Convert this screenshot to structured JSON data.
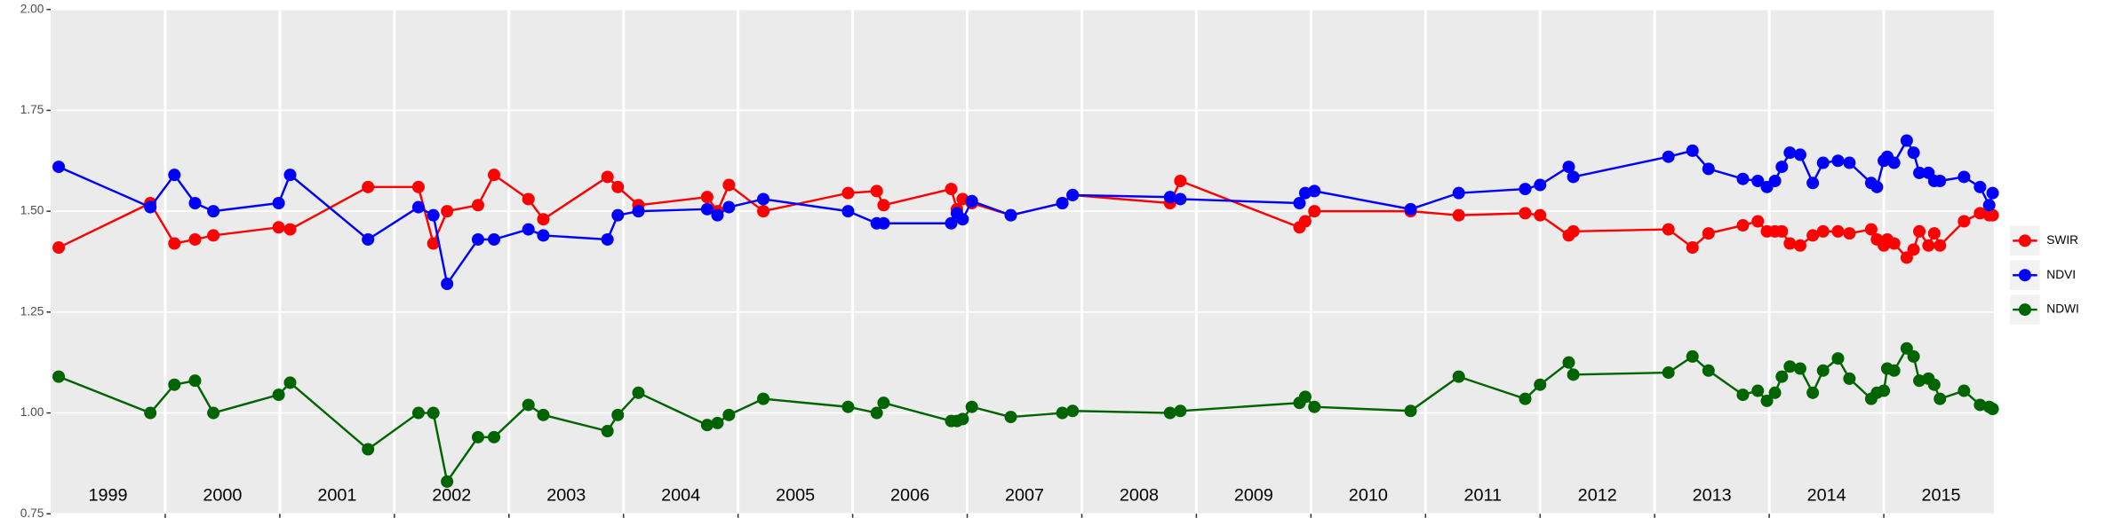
{
  "chart_data": {
    "type": "line",
    "x": [
      1999.07,
      1999.87,
      2000.08,
      2000.26,
      2000.42,
      2000.99,
      2001.09,
      2001.77,
      2002.21,
      2002.34,
      2002.46,
      2002.73,
      2002.87,
      2003.17,
      2003.3,
      2003.86,
      2003.95,
      2004.13,
      2004.73,
      2004.82,
      2004.92,
      2005.22,
      2005.96,
      2006.21,
      2006.27,
      2006.86,
      2006.91,
      2006.96,
      2007.04,
      2007.38,
      2007.83,
      2007.92,
      2008.77,
      2008.86,
      2009.9,
      2009.95,
      2010.03,
      2010.87,
      2011.29,
      2011.87,
      2012.0,
      2012.25,
      2012.29,
      2013.12,
      2013.33,
      2013.47,
      2013.77,
      2013.9,
      2013.98,
      2014.05,
      2014.11,
      2014.18,
      2014.27,
      2014.38,
      2014.47,
      2014.6,
      2014.7,
      2014.89,
      2014.94,
      2015.0,
      2015.03,
      2015.09,
      2015.2,
      2015.26,
      2015.31,
      2015.39,
      2015.44,
      2015.49,
      2015.7,
      2015.84,
      2015.92,
      2015.95
    ],
    "series": [
      {
        "name": "SWIR",
        "color": "#ff0000",
        "values": [
          1.41,
          1.52,
          1.42,
          1.43,
          1.44,
          1.46,
          1.455,
          1.56,
          1.56,
          1.42,
          1.5,
          1.515,
          1.59,
          1.53,
          1.48,
          1.585,
          1.56,
          1.515,
          1.535,
          1.5,
          1.565,
          1.5,
          1.545,
          1.55,
          1.515,
          1.555,
          1.505,
          1.53,
          1.52,
          1.49,
          1.52,
          1.54,
          1.52,
          1.575,
          1.46,
          1.475,
          1.5,
          1.5,
          1.49,
          1.495,
          1.49,
          1.44,
          1.45,
          1.455,
          1.41,
          1.445,
          1.465,
          1.475,
          1.45,
          1.45,
          1.45,
          1.42,
          1.415,
          1.44,
          1.45,
          1.45,
          1.445,
          1.455,
          1.43,
          1.415,
          1.43,
          1.42,
          1.385,
          1.405,
          1.45,
          1.415,
          1.445,
          1.415,
          1.475,
          1.495,
          1.49,
          1.49
        ]
      },
      {
        "name": "NDVI",
        "color": "#0000ff",
        "values": [
          1.61,
          1.51,
          1.59,
          1.52,
          1.5,
          1.52,
          1.59,
          1.43,
          1.51,
          1.49,
          1.32,
          1.43,
          1.43,
          1.455,
          1.44,
          1.43,
          1.49,
          1.5,
          1.505,
          1.49,
          1.51,
          1.53,
          1.5,
          1.47,
          1.47,
          1.47,
          1.495,
          1.48,
          1.525,
          1.49,
          1.52,
          1.54,
          1.535,
          1.53,
          1.52,
          1.545,
          1.55,
          1.505,
          1.545,
          1.555,
          1.565,
          1.61,
          1.585,
          1.635,
          1.65,
          1.605,
          1.58,
          1.575,
          1.56,
          1.575,
          1.61,
          1.645,
          1.64,
          1.57,
          1.62,
          1.625,
          1.62,
          1.57,
          1.56,
          1.625,
          1.635,
          1.62,
          1.675,
          1.645,
          1.595,
          1.595,
          1.575,
          1.575,
          1.585,
          1.56,
          1.515,
          1.545
        ]
      },
      {
        "name": "NDWI",
        "color": "#006400",
        "values": [
          1.09,
          1.0,
          1.07,
          1.08,
          1.0,
          1.045,
          1.075,
          0.91,
          1.0,
          1.0,
          0.83,
          0.94,
          0.94,
          1.02,
          0.995,
          0.955,
          0.995,
          1.05,
          0.97,
          0.975,
          0.995,
          1.035,
          1.015,
          1.0,
          1.025,
          0.98,
          0.98,
          0.985,
          1.015,
          0.99,
          1.0,
          1.005,
          1.0,
          1.005,
          1.025,
          1.04,
          1.015,
          1.005,
          1.09,
          1.035,
          1.07,
          1.125,
          1.095,
          1.1,
          1.14,
          1.105,
          1.045,
          1.055,
          1.03,
          1.05,
          1.09,
          1.115,
          1.11,
          1.05,
          1.105,
          1.135,
          1.085,
          1.035,
          1.05,
          1.055,
          1.11,
          1.105,
          1.16,
          1.14,
          1.08,
          1.085,
          1.07,
          1.035,
          1.055,
          1.02,
          1.015,
          1.01
        ]
      }
    ],
    "xlim": [
      1999,
      2015.96
    ],
    "xticks": [
      2000,
      2001,
      2002,
      2003,
      2004,
      2005,
      2006,
      2007,
      2008,
      2009,
      2010,
      2011,
      2012,
      2013,
      2014,
      2015
    ],
    "year_labels": [
      {
        "value": 1999.5,
        "label": "1999"
      },
      {
        "value": 2000.5,
        "label": "2000"
      },
      {
        "value": 2001.5,
        "label": "2001"
      },
      {
        "value": 2002.5,
        "label": "2002"
      },
      {
        "value": 2003.5,
        "label": "2003"
      },
      {
        "value": 2004.5,
        "label": "2004"
      },
      {
        "value": 2005.5,
        "label": "2005"
      },
      {
        "value": 2006.5,
        "label": "2006"
      },
      {
        "value": 2007.5,
        "label": "2007"
      },
      {
        "value": 2008.5,
        "label": "2008"
      },
      {
        "value": 2009.5,
        "label": "2009"
      },
      {
        "value": 2010.5,
        "label": "2010"
      },
      {
        "value": 2011.5,
        "label": "2011"
      },
      {
        "value": 2012.5,
        "label": "2012"
      },
      {
        "value": 2013.5,
        "label": "2013"
      },
      {
        "value": 2014.5,
        "label": "2014"
      },
      {
        "value": 2015.5,
        "label": "2015"
      }
    ],
    "ylim": [
      0.75,
      2.0
    ],
    "yticks": [
      {
        "value": 0.75,
        "label": "0.75"
      },
      {
        "value": 1.0,
        "label": "1.00"
      },
      {
        "value": 1.25,
        "label": "1.25"
      },
      {
        "value": 1.5,
        "label": "1.50"
      },
      {
        "value": 1.75,
        "label": "1.75"
      },
      {
        "value": 2.0,
        "label": "2.00"
      }
    ],
    "grid": true,
    "legend": "right"
  }
}
